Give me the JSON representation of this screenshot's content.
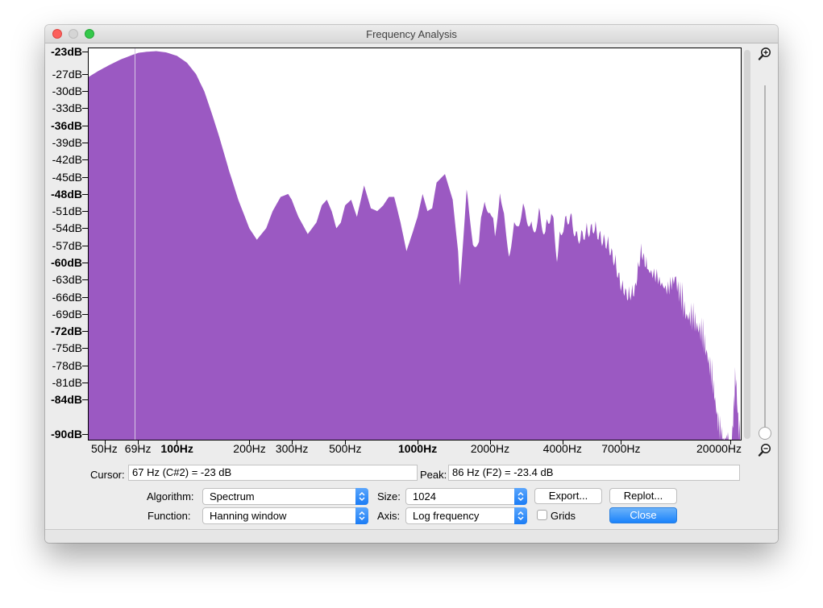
{
  "window": {
    "title": "Frequency Analysis"
  },
  "y_axis": {
    "labels": [
      {
        "text": "-23dB",
        "bold": true,
        "db": -23
      },
      {
        "text": "-27dB",
        "bold": false,
        "db": -27
      },
      {
        "text": "-30dB",
        "bold": false,
        "db": -30
      },
      {
        "text": "-33dB",
        "bold": false,
        "db": -33
      },
      {
        "text": "-36dB",
        "bold": true,
        "db": -36
      },
      {
        "text": "-39dB",
        "bold": false,
        "db": -39
      },
      {
        "text": "-42dB",
        "bold": false,
        "db": -42
      },
      {
        "text": "-45dB",
        "bold": false,
        "db": -45
      },
      {
        "text": "-48dB",
        "bold": true,
        "db": -48
      },
      {
        "text": "-51dB",
        "bold": false,
        "db": -51
      },
      {
        "text": "-54dB",
        "bold": false,
        "db": -54
      },
      {
        "text": "-57dB",
        "bold": false,
        "db": -57
      },
      {
        "text": "-60dB",
        "bold": true,
        "db": -60
      },
      {
        "text": "-63dB",
        "bold": false,
        "db": -63
      },
      {
        "text": "-66dB",
        "bold": false,
        "db": -66
      },
      {
        "text": "-69dB",
        "bold": false,
        "db": -69
      },
      {
        "text": "-72dB",
        "bold": true,
        "db": -72
      },
      {
        "text": "-75dB",
        "bold": false,
        "db": -75
      },
      {
        "text": "-78dB",
        "bold": false,
        "db": -78
      },
      {
        "text": "-81dB",
        "bold": false,
        "db": -81
      },
      {
        "text": "-84dB",
        "bold": true,
        "db": -84
      },
      {
        "text": "-90dB",
        "bold": true,
        "db": -90
      }
    ]
  },
  "x_axis": {
    "labels": [
      {
        "text": "50Hz",
        "bold": false,
        "hz": 50
      },
      {
        "text": "69Hz",
        "bold": false,
        "hz": 69
      },
      {
        "text": "100Hz",
        "bold": true,
        "hz": 100
      },
      {
        "text": "200Hz",
        "bold": false,
        "hz": 200
      },
      {
        "text": "300Hz",
        "bold": false,
        "hz": 300
      },
      {
        "text": "500Hz",
        "bold": false,
        "hz": 500
      },
      {
        "text": "1000Hz",
        "bold": true,
        "hz": 1000
      },
      {
        "text": "2000Hz",
        "bold": false,
        "hz": 2000
      },
      {
        "text": "4000Hz",
        "bold": false,
        "hz": 4000
      },
      {
        "text": "7000Hz",
        "bold": false,
        "hz": 7000
      },
      {
        "text": "20000Hz",
        "bold": false,
        "hz": 20000
      }
    ]
  },
  "chart_data": {
    "type": "area",
    "title": "",
    "xlabel": "",
    "ylabel": "",
    "x_scale": "log",
    "xlim": [
      43,
      22050
    ],
    "ylim": [
      -91,
      -22.5
    ],
    "color": "#9b59c2",
    "cursor_marker_hz": 67,
    "x": [
      43,
      47,
      52,
      58,
      64,
      69,
      75,
      82,
      90,
      100,
      110,
      120,
      130,
      140,
      150,
      165,
      180,
      200,
      215,
      235,
      250,
      270,
      290,
      300,
      320,
      350,
      380,
      400,
      420,
      440,
      460,
      480,
      500,
      530,
      560,
      600,
      640,
      680,
      720,
      760,
      800,
      850,
      900,
      950,
      1000,
      1050,
      1100,
      1150,
      1200,
      1300,
      1400,
      1500,
      1600,
      1700,
      1800,
      1900,
      2000,
      2100,
      2200,
      2300,
      2400,
      2600,
      2800,
      3000,
      3200,
      3400,
      3600,
      3800,
      4000,
      4300,
      4600,
      5000,
      5400,
      5800,
      6200,
      6600,
      7000,
      7500,
      8000,
      8500,
      9000,
      10000,
      11000,
      12000,
      13000,
      14000,
      15000,
      16000,
      17000,
      18000,
      19000,
      20000,
      21000,
      22050
    ],
    "y": [
      -27.5,
      -26.5,
      -25.5,
      -24.5,
      -23.8,
      -23.3,
      -23.1,
      -23.0,
      -23.2,
      -23.8,
      -25,
      -27,
      -30,
      -34,
      -38,
      -44,
      -49,
      -54,
      -56,
      -54,
      -51,
      -48.5,
      -48,
      -49,
      -52,
      -55,
      -53,
      -50,
      -49,
      -51,
      -54,
      -53,
      -50,
      -49,
      -52,
      -46.5,
      -50.5,
      -51,
      -50,
      -48.5,
      -48.5,
      -53,
      -58,
      -55,
      -52,
      -48,
      -51,
      -50.5,
      -46,
      -44.5,
      -49,
      -61,
      -47,
      -54,
      -55,
      -47,
      -49,
      -54,
      -45,
      -52,
      -56,
      -51,
      -49,
      -53,
      -50,
      -53,
      -49,
      -57,
      -52,
      -50,
      -54,
      -53,
      -52,
      -54,
      -55,
      -58,
      -62,
      -64,
      -63,
      -56,
      -59,
      -61,
      -63,
      -60,
      -65,
      -66,
      -68,
      -72,
      -78,
      -86,
      -88,
      -91,
      -76,
      -91
    ]
  },
  "controls": {
    "cursor_label": "Cursor:",
    "cursor_value": "67 Hz (C#2) = -23 dB",
    "peak_label": "Peak:",
    "peak_value": "86 Hz (F2) = -23.4 dB",
    "algorithm_label": "Algorithm:",
    "algorithm_value": "Spectrum",
    "size_label": "Size:",
    "size_value": "1024",
    "export_label": "Export...",
    "replot_label": "Replot...",
    "function_label": "Function:",
    "function_value": "Hanning window",
    "axis_label": "Axis:",
    "axis_value": "Log frequency",
    "grids_label": "Grids",
    "grids_checked": false,
    "close_label": "Close"
  },
  "icons": {
    "zoom_in": "zoom-in-icon",
    "zoom_out": "zoom-out-icon"
  },
  "colors": {
    "close_button": "#1a82fb",
    "spectrum_fill": "#9b59c2"
  }
}
